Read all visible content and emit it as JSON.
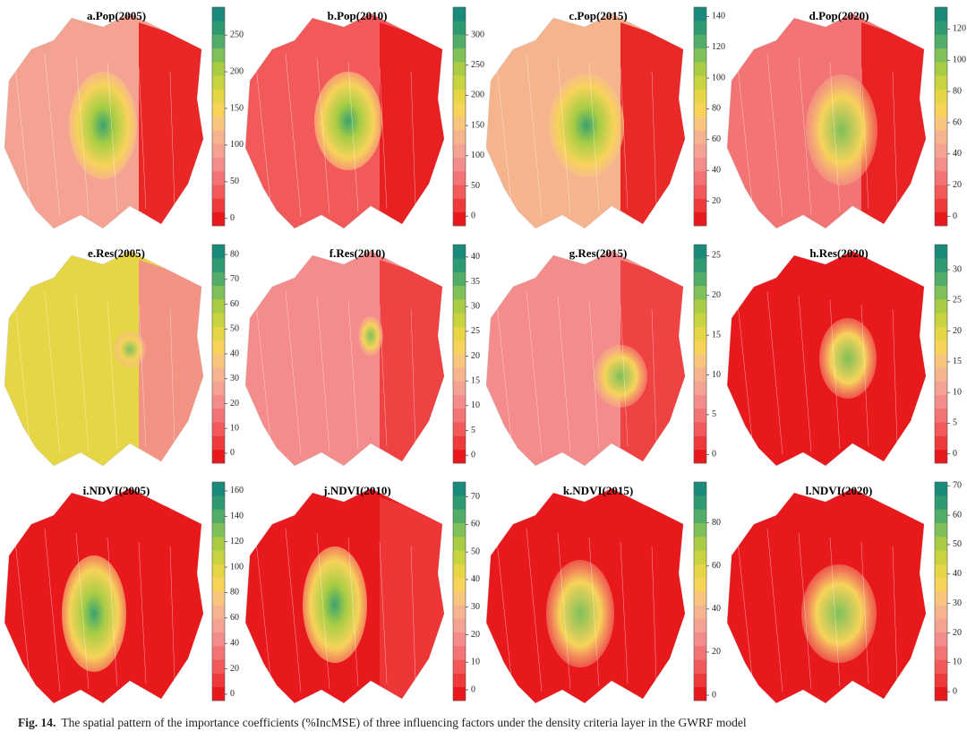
{
  "figure": {
    "panels": [
      {
        "title": "a.Pop(2005)",
        "range": [
          -10,
          288
        ],
        "ticks": [
          0,
          50,
          100,
          150,
          200,
          250
        ]
      },
      {
        "title": "b.Pop(2010)",
        "range": [
          -16,
          346
        ],
        "ticks": [
          0,
          50,
          100,
          150,
          200,
          250,
          300
        ]
      },
      {
        "title": "c.Pop(2015)",
        "range": [
          4,
          146
        ],
        "ticks": [
          20,
          40,
          60,
          80,
          100,
          120,
          140
        ]
      },
      {
        "title": "d.Pop(2020)",
        "range": [
          -6,
          134
        ],
        "ticks": [
          0,
          20,
          40,
          60,
          80,
          100,
          120
        ]
      },
      {
        "title": "e.Res(2005)",
        "range": [
          -4,
          84
        ],
        "ticks": [
          0,
          10,
          20,
          30,
          40,
          50,
          60,
          70,
          80
        ]
      },
      {
        "title": "f.Res(2010)",
        "range": [
          -1.6,
          42.5
        ],
        "ticks": [
          0,
          5,
          10,
          15,
          20,
          25,
          30,
          35,
          40
        ]
      },
      {
        "title": "g.Res(2015)",
        "range": [
          -1.1,
          26.4
        ],
        "ticks": [
          0,
          5,
          10,
          15,
          20,
          25
        ]
      },
      {
        "title": "h.Res(2020)",
        "range": [
          -1.5,
          34.1
        ],
        "ticks": [
          0,
          5,
          10,
          15,
          20,
          25,
          30
        ]
      },
      {
        "title": "i.NDVI(2005)",
        "range": [
          -5,
          167
        ],
        "ticks": [
          0,
          20,
          40,
          60,
          80,
          100,
          120,
          140,
          160
        ]
      },
      {
        "title": "j.NDVI(2010)",
        "range": [
          -3.9,
          75.4
        ],
        "ticks": [
          0,
          10,
          20,
          30,
          40,
          50,
          60,
          70
        ]
      },
      {
        "title": "k.NDVI(2015)",
        "range": [
          -2.5,
          99
        ],
        "ticks": [
          0,
          20,
          40,
          60,
          80
        ]
      },
      {
        "title": "l.NDVI(2020)",
        "range": [
          -3,
          71.3
        ],
        "ticks": [
          0,
          10,
          20,
          30,
          40,
          50,
          60,
          70
        ]
      }
    ],
    "colormap": [
      "#e8191c",
      "#ee3a3a",
      "#f25a5a",
      "#f27474",
      "#f38c8a",
      "#f4a292",
      "#f6b48e",
      "#f8c57e",
      "#f7d35a",
      "#e6d646",
      "#c8d43f",
      "#a8cd45",
      "#7fc059",
      "#52ad68",
      "#2f9a72",
      "#1a8a7a"
    ]
  },
  "caption": {
    "label": "Fig. 14.",
    "text": "The spatial pattern of the importance coefficients (%IncMSE) of three influencing factors under the density criteria layer in the GWRF model"
  }
}
